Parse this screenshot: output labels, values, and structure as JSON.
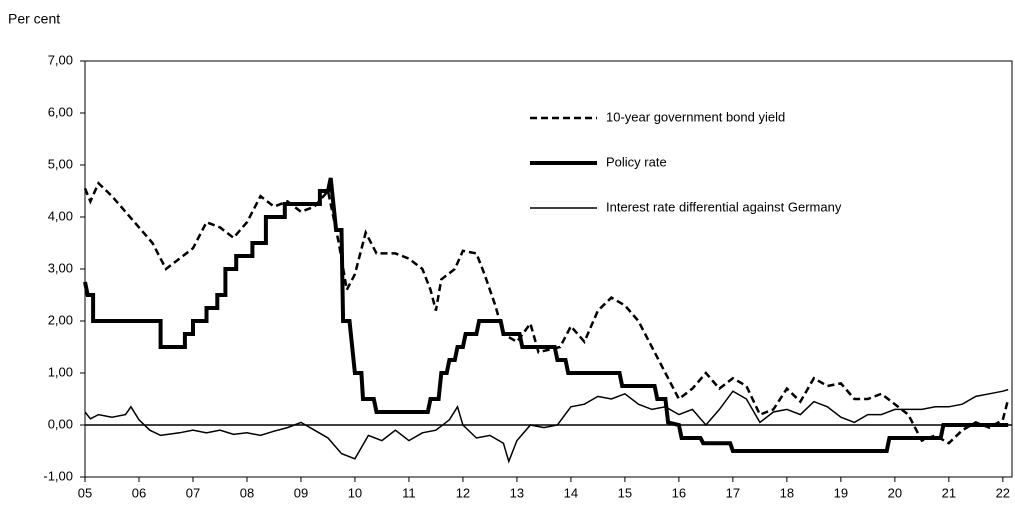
{
  "chart_data": {
    "type": "line",
    "ylabel": "Per cent",
    "xlim": [
      2005,
      2022.17
    ],
    "xticks": [
      {
        "value": 2005,
        "label": "05"
      },
      {
        "value": 2006,
        "label": "06"
      },
      {
        "value": 2007,
        "label": "07"
      },
      {
        "value": 2008,
        "label": "08"
      },
      {
        "value": 2009,
        "label": "09"
      },
      {
        "value": 2010,
        "label": "10"
      },
      {
        "value": 2011,
        "label": "11"
      },
      {
        "value": 2012,
        "label": "12"
      },
      {
        "value": 2013,
        "label": "13"
      },
      {
        "value": 2014,
        "label": "14"
      },
      {
        "value": 2015,
        "label": "15"
      },
      {
        "value": 2016,
        "label": "16"
      },
      {
        "value": 2017,
        "label": "17"
      },
      {
        "value": 2018,
        "label": "18"
      },
      {
        "value": 2019,
        "label": "19"
      },
      {
        "value": 2020,
        "label": "20"
      },
      {
        "value": 2021,
        "label": "21"
      },
      {
        "value": 2022,
        "label": "22"
      }
    ],
    "ylim": [
      -1,
      7
    ],
    "yticks": [
      {
        "value": -1,
        "label": "-1,00"
      },
      {
        "value": 0,
        "label": "0,00"
      },
      {
        "value": 1,
        "label": "1,00"
      },
      {
        "value": 2,
        "label": "2,00"
      },
      {
        "value": 3,
        "label": "3,00"
      },
      {
        "value": 4,
        "label": "4,00"
      },
      {
        "value": 5,
        "label": "5,00"
      },
      {
        "value": 6,
        "label": "6,00"
      },
      {
        "value": 7,
        "label": "7,00"
      }
    ],
    "zero_line": true,
    "legend": "top-right",
    "series": [
      {
        "name": "10-year government bond yield",
        "color": "#000000",
        "line_style": "dashed",
        "line_width": 2.5,
        "x": [
          2005.0,
          2005.1,
          2005.25,
          2005.5,
          2005.75,
          2006.0,
          2006.25,
          2006.5,
          2006.75,
          2007.0,
          2007.25,
          2007.5,
          2007.75,
          2008.0,
          2008.25,
          2008.5,
          2008.75,
          2009.0,
          2009.25,
          2009.5,
          2009.7,
          2009.85,
          2010.0,
          2010.2,
          2010.4,
          2010.75,
          2011.0,
          2011.25,
          2011.4,
          2011.5,
          2011.6,
          2011.85,
          2012.0,
          2012.25,
          2012.4,
          2012.6,
          2012.75,
          2013.0,
          2013.25,
          2013.4,
          2013.6,
          2013.8,
          2014.0,
          2014.25,
          2014.5,
          2014.75,
          2015.0,
          2015.25,
          2015.5,
          2015.75,
          2016.0,
          2016.25,
          2016.5,
          2016.75,
          2017.0,
          2017.25,
          2017.5,
          2017.75,
          2018.0,
          2018.25,
          2018.5,
          2018.75,
          2019.0,
          2019.25,
          2019.5,
          2019.75,
          2020.0,
          2020.25,
          2020.5,
          2020.75,
          2021.0,
          2021.25,
          2021.5,
          2021.75,
          2022.0,
          2022.1
        ],
        "values": [
          4.55,
          4.3,
          4.65,
          4.4,
          4.1,
          3.8,
          3.5,
          3.0,
          3.2,
          3.4,
          3.9,
          3.8,
          3.6,
          3.9,
          4.4,
          4.2,
          4.3,
          4.1,
          4.2,
          4.5,
          3.5,
          2.6,
          2.9,
          3.7,
          3.3,
          3.3,
          3.2,
          3.0,
          2.6,
          2.2,
          2.8,
          3.0,
          3.35,
          3.3,
          2.9,
          2.3,
          1.75,
          1.6,
          1.95,
          1.4,
          1.45,
          1.5,
          1.9,
          1.6,
          2.2,
          2.45,
          2.3,
          2.0,
          1.5,
          1.0,
          0.5,
          0.7,
          1.0,
          0.7,
          0.9,
          0.75,
          0.2,
          0.3,
          0.7,
          0.45,
          0.9,
          0.75,
          0.8,
          0.5,
          0.5,
          0.6,
          0.4,
          0.2,
          -0.3,
          -0.2,
          -0.35,
          -0.1,
          0.05,
          -0.05,
          0.1,
          0.5
        ]
      },
      {
        "name": "Policy rate",
        "color": "#000000",
        "line_style": "solid",
        "line_width": 4,
        "x": [
          2005.0,
          2005.05,
          2005.15,
          2005.15,
          2006.4,
          2006.4,
          2006.85,
          2006.85,
          2007.0,
          2007.0,
          2007.25,
          2007.25,
          2007.45,
          2007.45,
          2007.6,
          2007.6,
          2007.8,
          2007.8,
          2008.1,
          2008.1,
          2008.35,
          2008.35,
          2008.7,
          2008.7,
          2009.35,
          2009.35,
          2009.5,
          2009.55,
          2009.65,
          2009.75,
          2009.78,
          2009.9,
          2010.0,
          2010.12,
          2010.15,
          2010.35,
          2010.4,
          2011.35,
          2011.4,
          2011.55,
          2011.6,
          2011.7,
          2011.75,
          2011.85,
          2011.9,
          2012.0,
          2012.05,
          2012.25,
          2012.3,
          2012.7,
          2012.75,
          2013.05,
          2013.1,
          2013.7,
          2013.75,
          2013.9,
          2013.95,
          2014.9,
          2014.95,
          2015.55,
          2015.6,
          2015.75,
          2015.8,
          2016.0,
          2016.05,
          2016.4,
          2016.45,
          2016.95,
          2017.0,
          2019.85,
          2019.9,
          2020.85,
          2020.9,
          2022.1
        ],
        "values": [
          2.75,
          2.5,
          2.5,
          2.0,
          2.0,
          1.5,
          1.5,
          1.75,
          1.75,
          2.0,
          2.0,
          2.25,
          2.25,
          2.5,
          2.5,
          3.0,
          3.0,
          3.25,
          3.25,
          3.5,
          3.5,
          4.0,
          4.0,
          4.25,
          4.25,
          4.5,
          4.5,
          4.75,
          3.75,
          3.75,
          2.0,
          2.0,
          1.0,
          1.0,
          0.5,
          0.5,
          0.25,
          0.25,
          0.5,
          0.5,
          1.0,
          1.0,
          1.25,
          1.25,
          1.5,
          1.5,
          1.75,
          1.75,
          2.0,
          2.0,
          1.75,
          1.75,
          1.5,
          1.5,
          1.25,
          1.25,
          1.0,
          1.0,
          0.75,
          0.75,
          0.5,
          0.5,
          0.05,
          0.0,
          -0.25,
          -0.25,
          -0.35,
          -0.35,
          -0.5,
          -0.5,
          -0.25,
          -0.25,
          0.0,
          0.0
        ]
      },
      {
        "name": "Interest rate differential against Germany",
        "color": "#000000",
        "line_style": "solid",
        "line_width": 1.5,
        "x": [
          2005.0,
          2005.1,
          2005.25,
          2005.5,
          2005.75,
          2005.85,
          2006.0,
          2006.2,
          2006.4,
          2006.75,
          2007.0,
          2007.25,
          2007.5,
          2007.75,
          2008.0,
          2008.25,
          2008.5,
          2008.75,
          2009.0,
          2009.25,
          2009.5,
          2009.75,
          2010.0,
          2010.25,
          2010.5,
          2010.75,
          2011.0,
          2011.25,
          2011.5,
          2011.75,
          2011.9,
          2012.0,
          2012.25,
          2012.5,
          2012.75,
          2012.85,
          2013.0,
          2013.25,
          2013.5,
          2013.75,
          2014.0,
          2014.25,
          2014.5,
          2014.75,
          2015.0,
          2015.25,
          2015.5,
          2015.75,
          2016.0,
          2016.25,
          2016.5,
          2016.75,
          2017.0,
          2017.25,
          2017.5,
          2017.75,
          2018.0,
          2018.25,
          2018.5,
          2018.75,
          2019.0,
          2019.25,
          2019.5,
          2019.75,
          2020.0,
          2020.25,
          2020.5,
          2020.75,
          2021.0,
          2021.25,
          2021.5,
          2021.75,
          2022.0,
          2022.1
        ],
        "values": [
          0.25,
          0.12,
          0.2,
          0.15,
          0.2,
          0.35,
          0.1,
          -0.1,
          -0.2,
          -0.15,
          -0.1,
          -0.15,
          -0.1,
          -0.18,
          -0.15,
          -0.2,
          -0.12,
          -0.05,
          0.05,
          -0.1,
          -0.25,
          -0.55,
          -0.65,
          -0.2,
          -0.3,
          -0.1,
          -0.3,
          -0.15,
          -0.1,
          0.1,
          0.35,
          0.0,
          -0.25,
          -0.2,
          -0.35,
          -0.7,
          -0.3,
          0.0,
          -0.05,
          0.0,
          0.35,
          0.4,
          0.55,
          0.5,
          0.6,
          0.4,
          0.3,
          0.35,
          0.2,
          0.3,
          0.0,
          0.3,
          0.65,
          0.5,
          0.05,
          0.25,
          0.3,
          0.2,
          0.45,
          0.35,
          0.15,
          0.05,
          0.2,
          0.2,
          0.3,
          0.3,
          0.3,
          0.35,
          0.35,
          0.4,
          0.55,
          0.6,
          0.65,
          0.68
        ]
      }
    ]
  }
}
